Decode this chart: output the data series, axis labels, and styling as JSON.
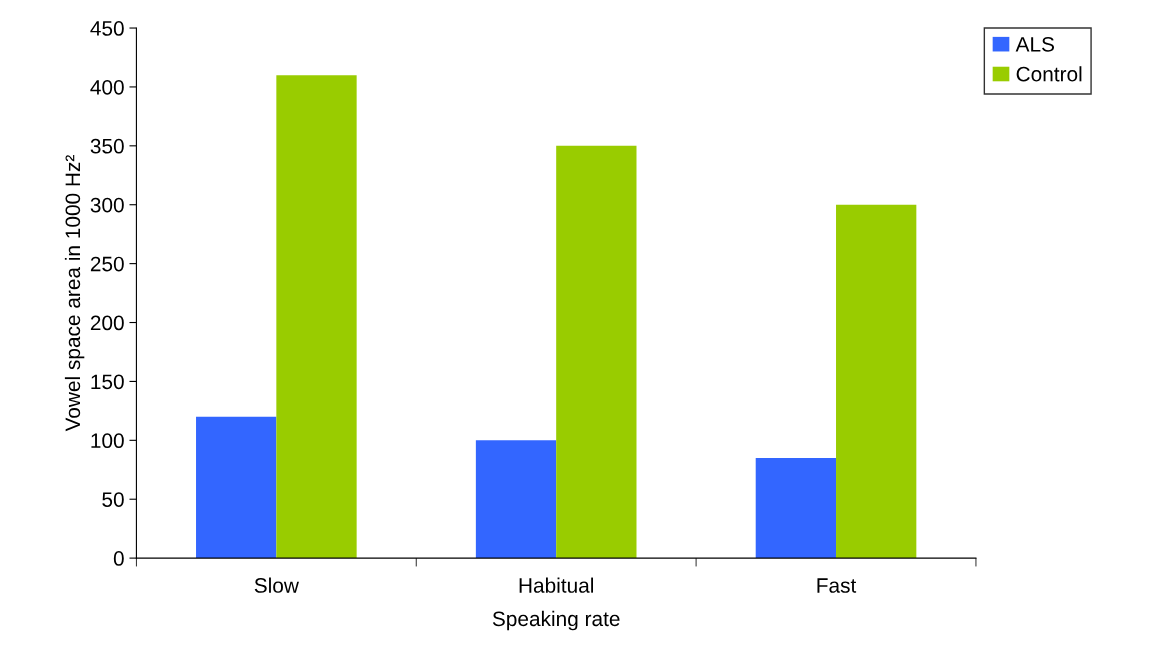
{
  "chart_data": {
    "type": "bar",
    "xlabel": "Speaking rate",
    "ylabel": "Vowel space area in 1000 Hz²",
    "categories": [
      "Slow",
      "Habitual",
      "Fast"
    ],
    "series": [
      {
        "name": "ALS",
        "color": "#3366ff",
        "values": [
          120,
          100,
          85
        ]
      },
      {
        "name": "Control",
        "color": "#99cc00",
        "values": [
          410,
          350,
          300
        ]
      }
    ],
    "ylim": [
      0,
      450
    ],
    "yticks": [
      0,
      50,
      100,
      150,
      200,
      250,
      300,
      350,
      400,
      450
    ],
    "grid": false,
    "legend": "top right"
  }
}
